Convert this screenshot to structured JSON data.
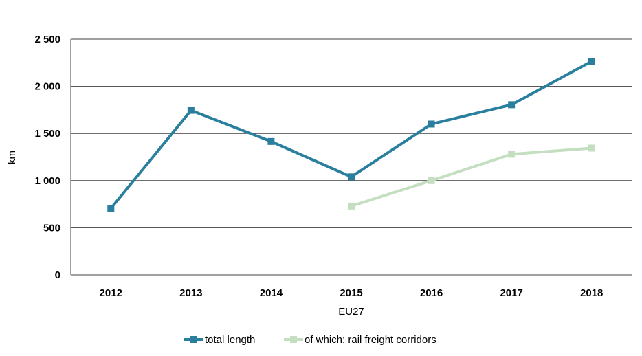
{
  "chart_data": {
    "type": "line",
    "title": "",
    "xlabel": "EU27",
    "ylabel": "km",
    "categories": [
      "2012",
      "2013",
      "2014",
      "2015",
      "2016",
      "2017",
      "2018"
    ],
    "ylim": [
      0,
      2500
    ],
    "yticks": [
      0,
      500,
      1000,
      1500,
      2000,
      2500
    ],
    "ytick_labels": [
      "0",
      "500",
      "1 000",
      "1 500",
      "2 000",
      "2 500"
    ],
    "grid": true,
    "legend_position": "bottom",
    "series": [
      {
        "name": "total length",
        "color": "#2b7f9e",
        "marker": "square",
        "values": [
          705,
          1745,
          1415,
          1040,
          1600,
          1805,
          2265
        ]
      },
      {
        "name": "of which: rail freight corridors",
        "color": "#c3dfc0",
        "marker": "square",
        "values": [
          null,
          null,
          null,
          730,
          1000,
          1280,
          1345
        ]
      }
    ]
  }
}
